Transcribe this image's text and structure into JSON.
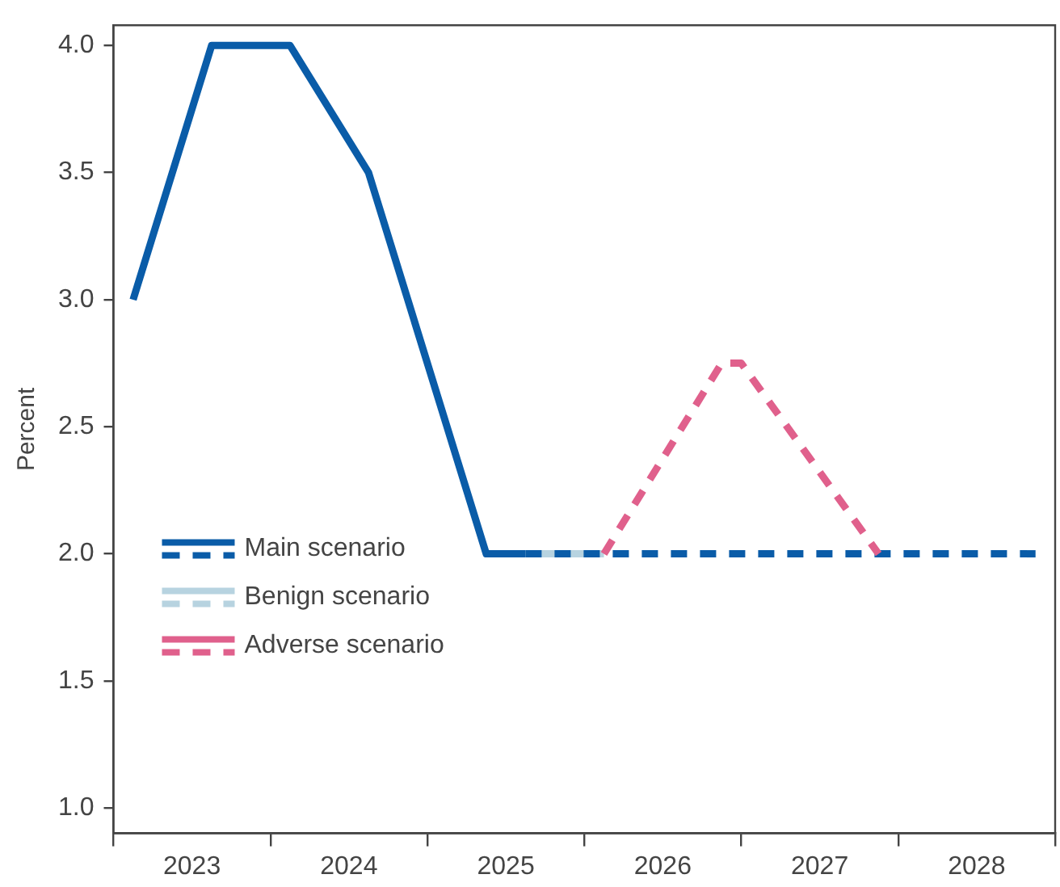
{
  "chart_data": {
    "type": "line",
    "ylabel": "Percent",
    "xlim": [
      2023,
      2029
    ],
    "xticks": [
      {
        "value": 2023,
        "label": null
      },
      {
        "value": 2023.5,
        "label": "2023"
      },
      {
        "value": 2024,
        "label": null
      },
      {
        "value": 2024.5,
        "label": "2024"
      },
      {
        "value": 2025,
        "label": null
      },
      {
        "value": 2025.5,
        "label": "2025"
      },
      {
        "value": 2026,
        "label": null
      },
      {
        "value": 2026.5,
        "label": "2026"
      },
      {
        "value": 2027,
        "label": null
      },
      {
        "value": 2027.5,
        "label": "2027"
      },
      {
        "value": 2028,
        "label": null
      },
      {
        "value": 2028.5,
        "label": "2028"
      },
      {
        "value": 2029,
        "label": null
      }
    ],
    "ylim": [
      0.9,
      4.08
    ],
    "yticks": [
      {
        "value": 1,
        "label": "1.0"
      },
      {
        "value": 1.5,
        "label": "1.5"
      },
      {
        "value": 2,
        "label": "2.0"
      },
      {
        "value": 2.5,
        "label": "2.5"
      },
      {
        "value": 3,
        "label": "3.0"
      },
      {
        "value": 3.5,
        "label": "3.5"
      },
      {
        "value": 4,
        "label": "4.0"
      }
    ],
    "grid": false,
    "legend": "bottom left",
    "marker": "none",
    "series": [
      {
        "name": "Main scenario",
        "color": "#0a5ca8",
        "line_style": "solid",
        "x": [
          2023.125,
          2023.625,
          2024.125,
          2024.625,
          2025.375,
          2025.625
        ],
        "values": [
          3.0,
          4.0,
          4.0,
          3.5,
          2.0,
          2.0
        ]
      },
      {
        "name": "Benign scenario",
        "color": "#b7d3e0",
        "line_style": "solid",
        "x": [
          2025.625,
          2026.125
        ],
        "values": [
          2.0,
          2.0
        ]
      },
      {
        "name": "Adverse scenario",
        "color": "#e0608c",
        "line_style": "dashed",
        "x": [
          2026.125,
          2026.875,
          2027.0,
          2027.875
        ],
        "values": [
          2.0,
          2.75,
          2.75,
          2.0
        ]
      },
      {
        "color": "#0a5ca8",
        "line_style": "dashed",
        "x": [
          2025.625,
          2028.875
        ],
        "values": [
          2.0,
          2.0
        ]
      }
    ]
  }
}
